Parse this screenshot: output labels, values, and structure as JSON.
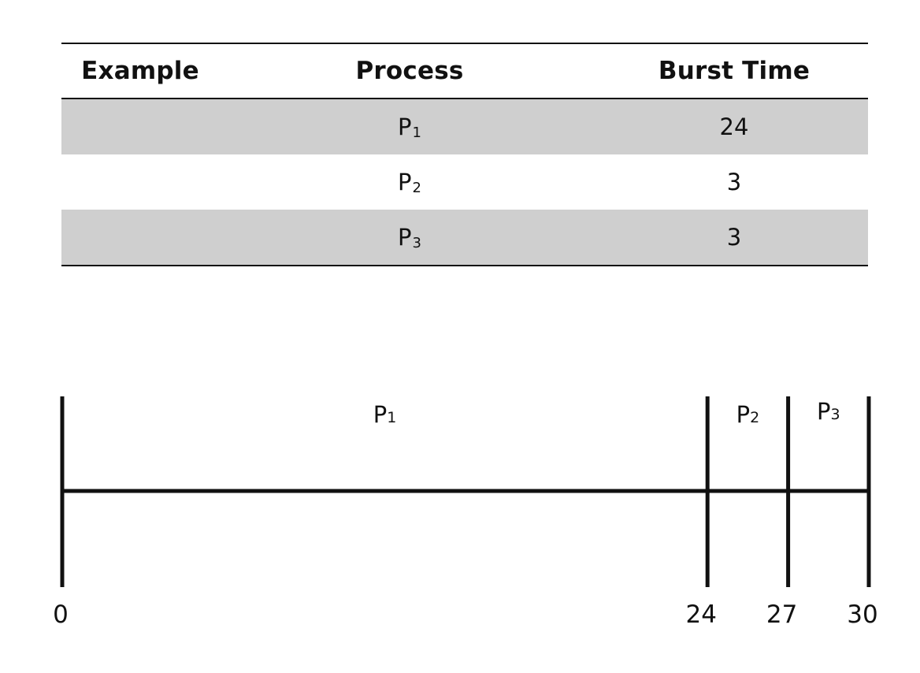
{
  "table": {
    "headers": [
      "Example",
      "Process",
      "Burst Time"
    ],
    "rows": [
      {
        "example": "",
        "process": "P",
        "process_sub": "1",
        "burst": "24"
      },
      {
        "example": "",
        "process": "P",
        "process_sub": "2",
        "burst": "3"
      },
      {
        "example": "",
        "process": "P",
        "process_sub": "3",
        "burst": "3"
      }
    ]
  },
  "gantt": {
    "segments": [
      {
        "label": "P",
        "sub": "1",
        "start": 0,
        "end": 24
      },
      {
        "label": "P",
        "sub": "2",
        "start": 24,
        "end": 27
      },
      {
        "label": "P",
        "sub": "3",
        "start": 27,
        "end": 30
      }
    ],
    "ticks": [
      "0",
      "24",
      "27",
      "30"
    ],
    "total": 30
  }
}
